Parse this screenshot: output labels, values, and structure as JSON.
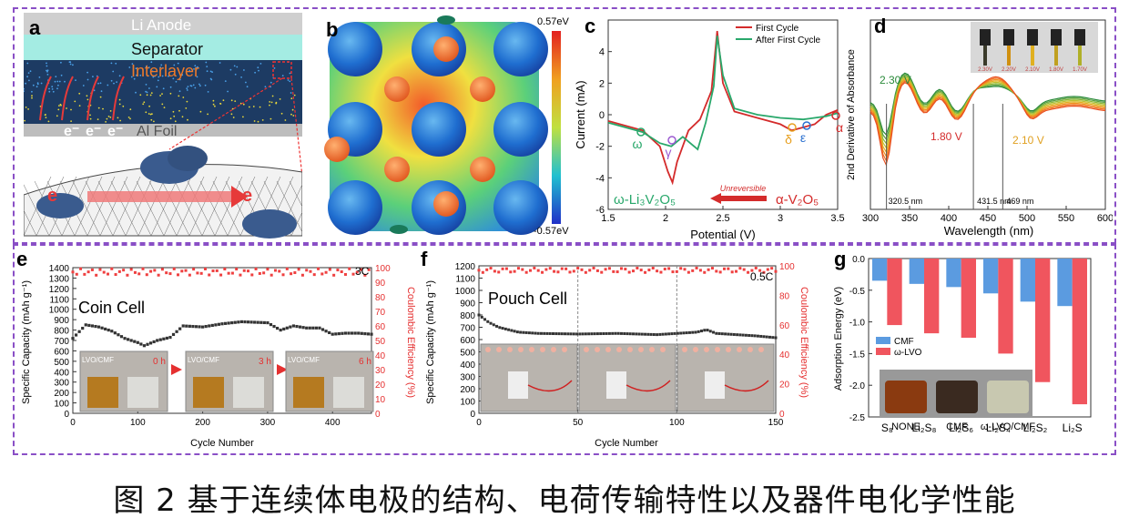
{
  "caption": "图 2 基于连续体电极的结构、电荷传输特性以及器件电化学性能",
  "panels": {
    "a": {
      "label": "a",
      "layers": [
        "Li Anode",
        "Separator",
        "Interlayer",
        "Al Foil"
      ],
      "electron": "e⁻",
      "electron_short": "e",
      "colors": {
        "anode": "#c9c9c9",
        "separator": "#9fe8e0",
        "interlayer": "#1e3c64",
        "foil": "#bdbdbd",
        "arrow": "#e63a3a"
      }
    },
    "b": {
      "label": "b",
      "cbar_max": "0.57eV",
      "cbar_min": "-0.57eV"
    },
    "c": {
      "label": "c",
      "xlabel": "Potential (V)",
      "ylabel": "Current (mA)",
      "legend": [
        "First Cycle",
        "After First Cycle"
      ],
      "phases": [
        "α",
        "δ",
        "ε",
        "γ",
        "ω"
      ],
      "left_label": "ω-Li₃V₂O₅",
      "right_label": "α-V₂O₅",
      "arrow_label": "Unreversible",
      "colors": {
        "first": "#d42b2b",
        "after": "#29a86b"
      }
    },
    "d": {
      "label": "d",
      "xlabel": "Wavelength (nm)",
      "ylabel": "2nd Derivative of Absorbance",
      "annotations": [
        "2.30 V",
        "1.80 V",
        "2.10 V",
        "320.5 nm",
        "431.5 nm",
        "469 nm"
      ],
      "vials": [
        "2.30V",
        "2.20V",
        "2.10V",
        "1.80V",
        "1.70V"
      ]
    },
    "e": {
      "label": "e",
      "title": "Coin Cell",
      "rate": "3C",
      "xlabel": "Cycle Number",
      "ylabel": "Specific Capacity (mAh g⁻¹)",
      "y2label": "Coulombic Efficiency (%)",
      "photo_labels": [
        {
          "tag": "LVO/CMF",
          "time": "0 h"
        },
        {
          "tag": "LVO/CMF",
          "time": "3 h"
        },
        {
          "tag": "LVO/CMF",
          "time": "6 h"
        }
      ]
    },
    "f": {
      "label": "f",
      "title": "Pouch Cell",
      "rate": "0.5C",
      "xlabel": "Cycle Number",
      "ylabel": "Specific Capacity (mAh g⁻¹)",
      "y2label": "Coulombic Efficiency (%)"
    },
    "g": {
      "label": "g",
      "ylabel": "Adsorption Energy (eV)",
      "legend": [
        "CMF",
        "ω-LVO"
      ],
      "photo_labels": [
        "NONE",
        "CMF",
        "ω-LVO/CMF"
      ]
    }
  },
  "chart_data": [
    {
      "panel": "c",
      "type": "line",
      "xlim": [
        1.5,
        3.5
      ],
      "ylim": [
        -6,
        6
      ],
      "x_ticks": [
        1.5,
        2.0,
        2.5,
        3.0,
        3.5
      ],
      "y_ticks": [
        -6,
        -4,
        -2,
        0,
        2,
        4
      ],
      "series": [
        {
          "name": "First Cycle",
          "x": [
            1.5,
            1.8,
            1.95,
            2.02,
            2.06,
            2.1,
            2.2,
            2.3,
            2.4,
            2.45,
            2.5,
            2.6,
            2.8,
            3.0,
            3.1,
            3.2,
            3.3,
            3.4,
            3.5
          ],
          "y": [
            -0.4,
            -1.0,
            -2.0,
            -3.6,
            -4.3,
            -3.0,
            -1.0,
            -0.3,
            1.5,
            5.3,
            2.0,
            0.2,
            -0.2,
            -0.6,
            -1.0,
            -0.8,
            -0.6,
            0.0,
            0.3
          ]
        },
        {
          "name": "After First Cycle",
          "x": [
            1.5,
            1.8,
            1.95,
            2.05,
            2.15,
            2.28,
            2.35,
            2.42,
            2.45,
            2.5,
            2.6,
            2.8,
            3.0,
            3.2,
            3.4,
            3.5
          ],
          "y": [
            -0.5,
            -1.1,
            -1.8,
            -2.0,
            -1.4,
            -2.2,
            -0.5,
            1.8,
            5.0,
            2.5,
            0.4,
            0.0,
            -0.2,
            -0.3,
            -0.1,
            0.1
          ]
        }
      ]
    },
    {
      "panel": "d",
      "type": "line",
      "xlim": [
        300,
        600
      ],
      "x_ticks": [
        300,
        350,
        400,
        450,
        500,
        550,
        600
      ],
      "markers_nm": [
        320.5,
        431.5,
        469
      ]
    },
    {
      "panel": "e",
      "type": "scatter",
      "xlim": [
        0,
        460
      ],
      "ylim": [
        0,
        1400
      ],
      "y2lim": [
        0,
        100
      ],
      "x_ticks": [
        0,
        100,
        200,
        300,
        400
      ],
      "y_ticks": [
        0,
        100,
        200,
        300,
        400,
        500,
        600,
        700,
        800,
        900,
        1000,
        1100,
        1200,
        1300,
        1400
      ],
      "y2_ticks": [
        0,
        10,
        20,
        30,
        40,
        50,
        60,
        70,
        80,
        90,
        100
      ],
      "series": [
        {
          "name": "Specific Capacity",
          "x": [
            0,
            20,
            40,
            60,
            80,
            100,
            110,
            130,
            150,
            170,
            200,
            230,
            260,
            300,
            320,
            340,
            360,
            380,
            400,
            420,
            440,
            460
          ],
          "y": [
            720,
            850,
            830,
            790,
            720,
            680,
            650,
            700,
            730,
            840,
            830,
            860,
            880,
            870,
            800,
            840,
            820,
            820,
            760,
            770,
            770,
            760
          ]
        },
        {
          "name": "Coulombic Efficiency",
          "x": [
            0,
            460
          ],
          "y": [
            98,
            98
          ]
        }
      ]
    },
    {
      "panel": "f",
      "type": "scatter",
      "xlim": [
        0,
        150
      ],
      "ylim": [
        0,
        1200
      ],
      "y2lim": [
        0,
        100
      ],
      "x_ticks": [
        0,
        50,
        100,
        150
      ],
      "y_ticks": [
        0,
        100,
        200,
        300,
        400,
        500,
        600,
        700,
        800,
        900,
        1000,
        1100,
        1200
      ],
      "y2_ticks": [
        0,
        20,
        40,
        60,
        80,
        100
      ],
      "series": [
        {
          "name": "Specific Capacity",
          "x": [
            0,
            5,
            10,
            20,
            30,
            50,
            70,
            90,
            110,
            115,
            120,
            130,
            140,
            150
          ],
          "y": [
            800,
            740,
            700,
            660,
            650,
            645,
            650,
            640,
            660,
            680,
            650,
            640,
            630,
            615
          ]
        },
        {
          "name": "Coulombic Efficiency",
          "x": [
            0,
            150
          ],
          "y": [
            98,
            98
          ]
        }
      ]
    },
    {
      "panel": "g",
      "type": "bar",
      "categories": [
        "S₈",
        "Li₂S₈",
        "Li₂S₆",
        "Li₂S₄",
        "Li₂S₂",
        "Li₂S"
      ],
      "ylim": [
        -2.5,
        0
      ],
      "y_ticks": [
        0.0,
        -0.5,
        -1.0,
        -1.5,
        -2.0,
        -2.5
      ],
      "series": [
        {
          "name": "CMF",
          "values": [
            -0.35,
            -0.4,
            -0.45,
            -0.55,
            -0.68,
            -0.75
          ]
        },
        {
          "name": "ω-LVO",
          "values": [
            -1.05,
            -1.18,
            -1.25,
            -1.5,
            -1.95,
            -2.3
          ]
        }
      ]
    }
  ]
}
